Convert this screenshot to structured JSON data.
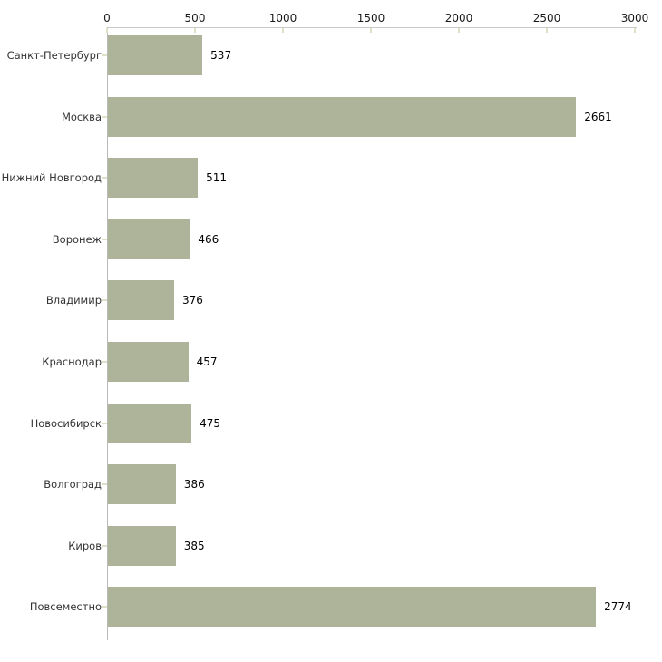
{
  "chart_data": {
    "type": "bar",
    "orientation": "horizontal",
    "title": "",
    "xlabel": "",
    "ylabel": "",
    "categories": [
      "Санкт-Петербург",
      "Москва",
      "Нижний Новгород",
      "Воронеж",
      "Владимир",
      "Краснодар",
      "Новосибирск",
      "Волгоград",
      "Киров",
      "Повсеместно"
    ],
    "values": [
      537,
      2661,
      511,
      466,
      376,
      457,
      475,
      386,
      385,
      2774
    ],
    "x_ticks": [
      "0",
      "500",
      "1000",
      "1500",
      "2000",
      "2500",
      "3000"
    ],
    "xlim": [
      0,
      3000
    ],
    "grid": false,
    "legend": false,
    "axis_position": "top",
    "colors": {
      "bar_fill": "#aeb49a",
      "axis_line": "#c9c9c9",
      "y_axis_line": "#b9b9b9",
      "tick_mark": "#dde1c8",
      "category_text": "#333333",
      "value_text": "#000000",
      "background": "#ffffff"
    }
  }
}
